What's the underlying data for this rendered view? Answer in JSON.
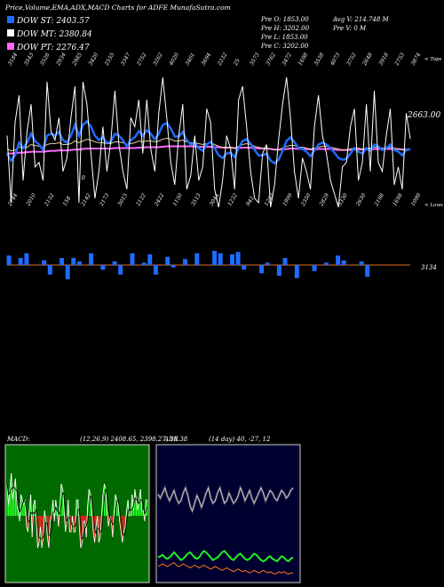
{
  "header": {
    "title": "Price,Volume,EMA,ADX,MACD Charts for ADFE MunafaSutra.com"
  },
  "legend": [
    {
      "label": "DOW ST: 2403.57",
      "color": "#1e6bff"
    },
    {
      "label": "DOW MT: 2380.84",
      "color": "#ffffff"
    },
    {
      "label": "DOW PT: 2276.47",
      "color": "#ff66ff"
    }
  ],
  "stats": {
    "col1": [
      "Pre O: 1853.00",
      "Pre H: 3202.00",
      "Pre L: 1853.00",
      "Pre C: 3202.00"
    ],
    "col2": [
      "Avg V: 214.748 M",
      "Pre V: 0 M"
    ]
  },
  "price_panel": {
    "last_price_label": "2663.00",
    "right_top_label": "< Tops",
    "right_bottom_label": "< Lows",
    "circle_marker": "0",
    "top_labels": [
      "3184",
      "3543",
      "3526",
      "2934",
      "2985",
      "3420",
      "2555",
      "3347",
      "2752",
      "3262",
      "4020",
      "3401",
      "3694",
      "2232",
      "25",
      "3573",
      "3762",
      "3472",
      "1698",
      "3538",
      "4073",
      "3752",
      "2648",
      "3918",
      "2753",
      "3874"
    ],
    "bottom_labels": [
      "2744",
      "2010",
      "2132",
      "158",
      "2142",
      "2173",
      "3015",
      "2122",
      "2422",
      "1150",
      "3513",
      "3044",
      "1232",
      "942",
      "1283",
      "1999",
      "2350",
      "2829",
      "3330",
      "2630",
      "2198",
      "1698",
      "1099"
    ]
  },
  "volume_panel": {
    "label": "3134"
  },
  "macd_panel": {
    "title": "MACD:",
    "params": "(12,26,9) 2408.65, 2398.27, 10.38"
  },
  "adx_panel": {
    "title": "ADX",
    "params": "(14 day) 40, -27, 12"
  },
  "chart_data": {
    "type": "line",
    "price_close": [
      2700,
      1950,
      2850,
      3150,
      2200,
      2750,
      3050,
      2350,
      2400,
      2200,
      3300,
      2750,
      2650,
      2900,
      2300,
      2450,
      2900,
      3250,
      1950,
      3300,
      3050,
      2500,
      2000,
      2300,
      2800,
      2300,
      2650,
      3200,
      2600,
      2300,
      2100,
      2900,
      2800,
      3100,
      2500,
      3100,
      2550,
      2300,
      2950,
      3350,
      2900,
      2400,
      2150,
      2700,
      3050,
      2100,
      2250,
      2700,
      2200,
      2350,
      3000,
      2850,
      2100,
      1900,
      2200,
      2700,
      2550,
      2100,
      3100,
      3250,
      2800,
      2300,
      2000,
      1950,
      2500,
      2600,
      1900,
      2150,
      2650,
      3050,
      3350,
      2900,
      2300,
      2000,
      2450,
      2300,
      2100,
      2800,
      3150,
      2700,
      2500,
      2200,
      2050,
      1900,
      2350,
      2400,
      2800,
      3000,
      2200,
      2400,
      3050,
      2300,
      3200,
      2400,
      2300,
      2700,
      3000,
      2150,
      2350,
      2100,
      2950,
      2663
    ],
    "ema_short": [
      2500,
      2420,
      2480,
      2620,
      2560,
      2620,
      2720,
      2640,
      2600,
      2540,
      2700,
      2720,
      2700,
      2740,
      2650,
      2620,
      2700,
      2820,
      2700,
      2820,
      2860,
      2800,
      2700,
      2650,
      2680,
      2620,
      2630,
      2720,
      2700,
      2650,
      2580,
      2650,
      2680,
      2750,
      2700,
      2760,
      2720,
      2660,
      2720,
      2820,
      2840,
      2780,
      2690,
      2690,
      2740,
      2650,
      2600,
      2620,
      2560,
      2530,
      2600,
      2630,
      2560,
      2480,
      2450,
      2500,
      2510,
      2460,
      2560,
      2640,
      2660,
      2610,
      2540,
      2480,
      2480,
      2500,
      2420,
      2390,
      2430,
      2530,
      2640,
      2680,
      2630,
      2560,
      2550,
      2520,
      2470,
      2530,
      2600,
      2620,
      2600,
      2560,
      2510,
      2450,
      2430,
      2440,
      2500,
      2560,
      2520,
      2500,
      2560,
      2530,
      2600,
      2580,
      2540,
      2560,
      2600,
      2540,
      2520,
      2480,
      2540,
      2550
    ],
    "ema_mid": [
      2550,
      2530,
      2540,
      2570,
      2560,
      2570,
      2600,
      2590,
      2580,
      2570,
      2600,
      2610,
      2610,
      2620,
      2600,
      2600,
      2610,
      2640,
      2620,
      2640,
      2660,
      2650,
      2630,
      2620,
      2620,
      2610,
      2610,
      2630,
      2630,
      2620,
      2600,
      2610,
      2620,
      2640,
      2630,
      2640,
      2640,
      2630,
      2640,
      2660,
      2670,
      2660,
      2640,
      2640,
      2650,
      2630,
      2620,
      2620,
      2610,
      2600,
      2610,
      2620,
      2600,
      2580,
      2570,
      2570,
      2570,
      2560,
      2580,
      2600,
      2610,
      2600,
      2580,
      2570,
      2560,
      2560,
      2550,
      2540,
      2540,
      2560,
      2580,
      2590,
      2590,
      2570,
      2570,
      2560,
      2550,
      2560,
      2570,
      2580,
      2580,
      2570,
      2560,
      2550,
      2540,
      2540,
      2550,
      2560,
      2560,
      2550,
      2560,
      2560,
      2570,
      2570,
      2560,
      2560,
      2570,
      2560,
      2550,
      2540,
      2550,
      2550
    ],
    "ema_long": [
      2500,
      2500,
      2505,
      2510,
      2510,
      2515,
      2520,
      2520,
      2520,
      2520,
      2525,
      2530,
      2530,
      2535,
      2535,
      2535,
      2540,
      2545,
      2545,
      2550,
      2555,
      2555,
      2555,
      2555,
      2555,
      2555,
      2555,
      2560,
      2560,
      2560,
      2560,
      2560,
      2560,
      2565,
      2565,
      2570,
      2570,
      2570,
      2570,
      2575,
      2580,
      2580,
      2580,
      2580,
      2580,
      2580,
      2580,
      2580,
      2575,
      2575,
      2575,
      2575,
      2570,
      2570,
      2565,
      2565,
      2565,
      2560,
      2560,
      2565,
      2565,
      2565,
      2560,
      2555,
      2555,
      2555,
      2550,
      2545,
      2545,
      2545,
      2550,
      2555,
      2555,
      2550,
      2550,
      2550,
      2545,
      2545,
      2550,
      2550,
      2550,
      2550,
      2545,
      2540,
      2540,
      2540,
      2540,
      2545,
      2545,
      2545,
      2545,
      2545,
      2550,
      2550,
      2550,
      2550,
      2550,
      2550,
      2550,
      2545,
      2545,
      2545
    ],
    "volume": [
      8,
      0,
      6,
      10,
      0,
      0,
      4,
      8,
      0,
      6,
      12,
      6,
      3,
      0,
      10,
      0,
      4,
      0,
      3,
      8,
      0,
      10,
      0,
      2,
      9,
      8,
      0,
      7,
      2,
      0,
      5,
      0,
      10,
      0,
      0,
      12,
      10,
      0,
      9,
      11,
      4,
      0,
      0,
      7,
      2,
      0,
      9,
      6,
      0,
      11,
      0,
      0,
      5,
      0,
      2,
      0,
      8,
      4,
      0,
      0,
      3,
      10,
      0,
      0,
      0,
      0,
      0,
      0,
      0
    ],
    "macd": [
      0.6,
      0.2,
      0.5,
      0.8,
      0.3,
      0.5,
      0.7,
      0.2,
      0.1,
      -0.1,
      0.4,
      0.3,
      0.2,
      0.3,
      -0.2,
      -0.3,
      0.1,
      0.4,
      -0.4,
      0.2,
      0.3,
      -0.1,
      -0.6,
      -0.5,
      -0.2,
      -0.6,
      -0.4,
      0.1,
      -0.1,
      -0.4,
      -0.6,
      -0.1,
      0.0,
      0.3,
      -0.1,
      0.3,
      0.1,
      -0.2,
      0.2,
      0.6,
      0.5,
      0.1,
      -0.3,
      -0.1,
      0.3,
      -0.3,
      -0.3,
      0.0,
      -0.3,
      -0.3,
      0.3,
      0.3,
      -0.2,
      -0.6,
      -0.5,
      -0.1,
      -0.1,
      -0.4,
      0.2,
      0.5,
      0.4,
      0.1,
      -0.3,
      -0.5,
      -0.2,
      0.0,
      -0.5,
      -0.4,
      0.0,
      0.4,
      0.6,
      0.5,
      0.1,
      -0.2,
      0.0,
      -0.1,
      -0.4,
      0.1,
      0.4,
      0.3,
      0.2,
      -0.1,
      -0.3,
      -0.5,
      -0.3,
      -0.2,
      0.1,
      0.3,
      0.0,
      0.0,
      0.4,
      0.1,
      0.5,
      0.3,
      0.1,
      0.3,
      0.5,
      0.1,
      0.1,
      -0.1,
      0.3,
      0.3
    ],
    "adx_plus": [
      0.65,
      0.62,
      0.66,
      0.7,
      0.64,
      0.6,
      0.64,
      0.68,
      0.62,
      0.58,
      0.6,
      0.66,
      0.7,
      0.64,
      0.56,
      0.52,
      0.58,
      0.64,
      0.6,
      0.55,
      0.6,
      0.66,
      0.7,
      0.62,
      0.58,
      0.6,
      0.66,
      0.7,
      0.64,
      0.58,
      0.6,
      0.66,
      0.62,
      0.58,
      0.6,
      0.64,
      0.7,
      0.66,
      0.6,
      0.64,
      0.68,
      0.62,
      0.58,
      0.62,
      0.66,
      0.7,
      0.66,
      0.6,
      0.64,
      0.68,
      0.66,
      0.62,
      0.6,
      0.64,
      0.68,
      0.66,
      0.62,
      0.64,
      0.68,
      0.7
    ],
    "adx_minus": [
      0.16,
      0.17,
      0.18,
      0.16,
      0.15,
      0.16,
      0.18,
      0.2,
      0.18,
      0.16,
      0.14,
      0.15,
      0.17,
      0.19,
      0.2,
      0.18,
      0.16,
      0.15,
      0.16,
      0.19,
      0.21,
      0.2,
      0.18,
      0.16,
      0.14,
      0.15,
      0.16,
      0.18,
      0.2,
      0.21,
      0.19,
      0.17,
      0.15,
      0.14,
      0.16,
      0.18,
      0.19,
      0.17,
      0.15,
      0.14,
      0.15,
      0.17,
      0.19,
      0.18,
      0.16,
      0.14,
      0.13,
      0.14,
      0.16,
      0.17,
      0.15,
      0.14,
      0.13,
      0.15,
      0.17,
      0.16,
      0.14,
      0.13,
      0.15,
      0.16
    ],
    "adx_neg": [
      0.09,
      0.1,
      0.11,
      0.1,
      0.09,
      0.1,
      0.11,
      0.12,
      0.1,
      0.09,
      0.1,
      0.11,
      0.1,
      0.09,
      0.08,
      0.09,
      0.1,
      0.09,
      0.08,
      0.09,
      0.1,
      0.09,
      0.08,
      0.07,
      0.08,
      0.09,
      0.08,
      0.07,
      0.06,
      0.07,
      0.08,
      0.07,
      0.06,
      0.05,
      0.06,
      0.07,
      0.06,
      0.05,
      0.06,
      0.05,
      0.04,
      0.05,
      0.06,
      0.05,
      0.04,
      0.05,
      0.06,
      0.05,
      0.04,
      0.05,
      0.04,
      0.03,
      0.04,
      0.05,
      0.04,
      0.05,
      0.04,
      0.03,
      0.04,
      0.04
    ]
  }
}
